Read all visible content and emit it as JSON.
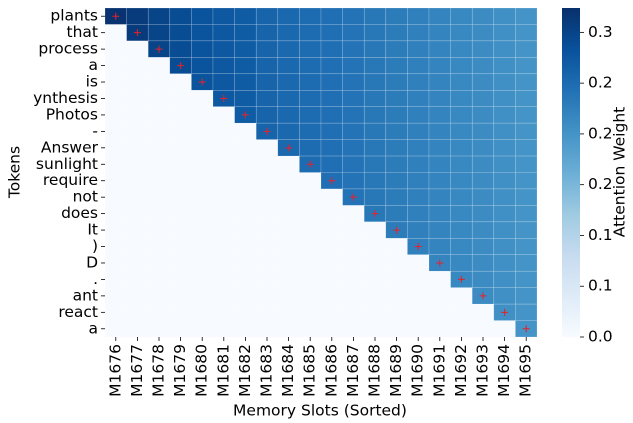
{
  "chart_data": {
    "type": "heatmap",
    "xlabel": "Memory Slots (Sorted)",
    "ylabel": "Tokens",
    "colorbar_label": "Attention Weight",
    "colormap": "Blues",
    "x_categories": [
      "M1676",
      "M1677",
      "M1678",
      "M1679",
      "M1680",
      "M1681",
      "M1682",
      "M1683",
      "M1684",
      "M1685",
      "M1686",
      "M1687",
      "M1688",
      "M1689",
      "M1690",
      "M1691",
      "M1692",
      "M1693",
      "M1694",
      "M1695"
    ],
    "y_categories": [
      "plants",
      "that",
      "process",
      "a",
      "is",
      "ynthesis",
      "Photos",
      "-",
      "Answer",
      "sunlight",
      "require",
      "not",
      "does",
      "It",
      ")",
      "D",
      ".",
      "ant",
      "react",
      "a"
    ],
    "values": [
      [
        0.32,
        0.31,
        0.3,
        0.29,
        0.28,
        0.275,
        0.27,
        0.26,
        0.255,
        0.25,
        0.245,
        0.24,
        0.235,
        0.23,
        0.225,
        0.22,
        0.215,
        0.21,
        0.205,
        0.2
      ],
      [
        0,
        0.31,
        0.3,
        0.29,
        0.28,
        0.275,
        0.27,
        0.26,
        0.255,
        0.25,
        0.245,
        0.24,
        0.235,
        0.23,
        0.225,
        0.22,
        0.215,
        0.21,
        0.205,
        0.2
      ],
      [
        0,
        0,
        0.3,
        0.29,
        0.28,
        0.275,
        0.27,
        0.26,
        0.255,
        0.25,
        0.245,
        0.24,
        0.235,
        0.23,
        0.225,
        0.22,
        0.215,
        0.21,
        0.205,
        0.2
      ],
      [
        0,
        0,
        0,
        0.29,
        0.28,
        0.275,
        0.27,
        0.26,
        0.255,
        0.25,
        0.245,
        0.24,
        0.235,
        0.23,
        0.225,
        0.22,
        0.215,
        0.21,
        0.205,
        0.2
      ],
      [
        0,
        0,
        0,
        0,
        0.28,
        0.275,
        0.27,
        0.26,
        0.255,
        0.25,
        0.245,
        0.24,
        0.235,
        0.23,
        0.225,
        0.22,
        0.215,
        0.21,
        0.205,
        0.2
      ],
      [
        0,
        0,
        0,
        0,
        0,
        0.275,
        0.27,
        0.26,
        0.255,
        0.25,
        0.245,
        0.24,
        0.235,
        0.23,
        0.225,
        0.22,
        0.215,
        0.21,
        0.205,
        0.2
      ],
      [
        0,
        0,
        0,
        0,
        0,
        0,
        0.27,
        0.26,
        0.255,
        0.25,
        0.245,
        0.24,
        0.235,
        0.23,
        0.225,
        0.22,
        0.215,
        0.21,
        0.205,
        0.2
      ],
      [
        0,
        0,
        0,
        0,
        0,
        0,
        0,
        0.26,
        0.255,
        0.25,
        0.245,
        0.24,
        0.235,
        0.23,
        0.225,
        0.22,
        0.215,
        0.21,
        0.205,
        0.2
      ],
      [
        0,
        0,
        0,
        0,
        0,
        0,
        0,
        0,
        0.255,
        0.25,
        0.245,
        0.24,
        0.235,
        0.23,
        0.225,
        0.22,
        0.215,
        0.21,
        0.205,
        0.2
      ],
      [
        0,
        0,
        0,
        0,
        0,
        0,
        0,
        0,
        0,
        0.25,
        0.245,
        0.24,
        0.235,
        0.23,
        0.225,
        0.22,
        0.215,
        0.21,
        0.205,
        0.2
      ],
      [
        0,
        0,
        0,
        0,
        0,
        0,
        0,
        0,
        0,
        0,
        0.245,
        0.24,
        0.235,
        0.23,
        0.225,
        0.22,
        0.215,
        0.21,
        0.205,
        0.2
      ],
      [
        0,
        0,
        0,
        0,
        0,
        0,
        0,
        0,
        0,
        0,
        0,
        0.24,
        0.235,
        0.23,
        0.225,
        0.22,
        0.215,
        0.21,
        0.205,
        0.2
      ],
      [
        0,
        0,
        0,
        0,
        0,
        0,
        0,
        0,
        0,
        0,
        0,
        0,
        0.235,
        0.23,
        0.225,
        0.22,
        0.215,
        0.21,
        0.205,
        0.2
      ],
      [
        0,
        0,
        0,
        0,
        0,
        0,
        0,
        0,
        0,
        0,
        0,
        0,
        0,
        0.23,
        0.225,
        0.22,
        0.215,
        0.21,
        0.205,
        0.2
      ],
      [
        0,
        0,
        0,
        0,
        0,
        0,
        0,
        0,
        0,
        0,
        0,
        0,
        0,
        0,
        0.225,
        0.22,
        0.215,
        0.21,
        0.205,
        0.2
      ],
      [
        0,
        0,
        0,
        0,
        0,
        0,
        0,
        0,
        0,
        0,
        0,
        0,
        0,
        0,
        0,
        0.22,
        0.215,
        0.21,
        0.205,
        0.2
      ],
      [
        0,
        0,
        0,
        0,
        0,
        0,
        0,
        0,
        0,
        0,
        0,
        0,
        0,
        0,
        0,
        0,
        0.215,
        0.21,
        0.205,
        0.2
      ],
      [
        0,
        0,
        0,
        0,
        0,
        0,
        0,
        0,
        0,
        0,
        0,
        0,
        0,
        0,
        0,
        0,
        0,
        0.21,
        0.205,
        0.2
      ],
      [
        0,
        0,
        0,
        0,
        0,
        0,
        0,
        0,
        0,
        0,
        0,
        0,
        0,
        0,
        0,
        0,
        0,
        0,
        0.205,
        0.2
      ],
      [
        0,
        0,
        0,
        0,
        0,
        0,
        0,
        0,
        0,
        0,
        0,
        0,
        0,
        0,
        0,
        0,
        0,
        0,
        0,
        0.2
      ]
    ],
    "clim": [
      0,
      0.324
    ],
    "cticks": [
      {
        "value": 0,
        "label": "0.0"
      },
      {
        "value": 0.05,
        "label": "0.1"
      },
      0.1,
      {
        "value": 0.15,
        "label": "0.2"
      },
      0.2,
      {
        "value": 0.25,
        "label": "0.2"
      },
      0.3
    ]
  }
}
